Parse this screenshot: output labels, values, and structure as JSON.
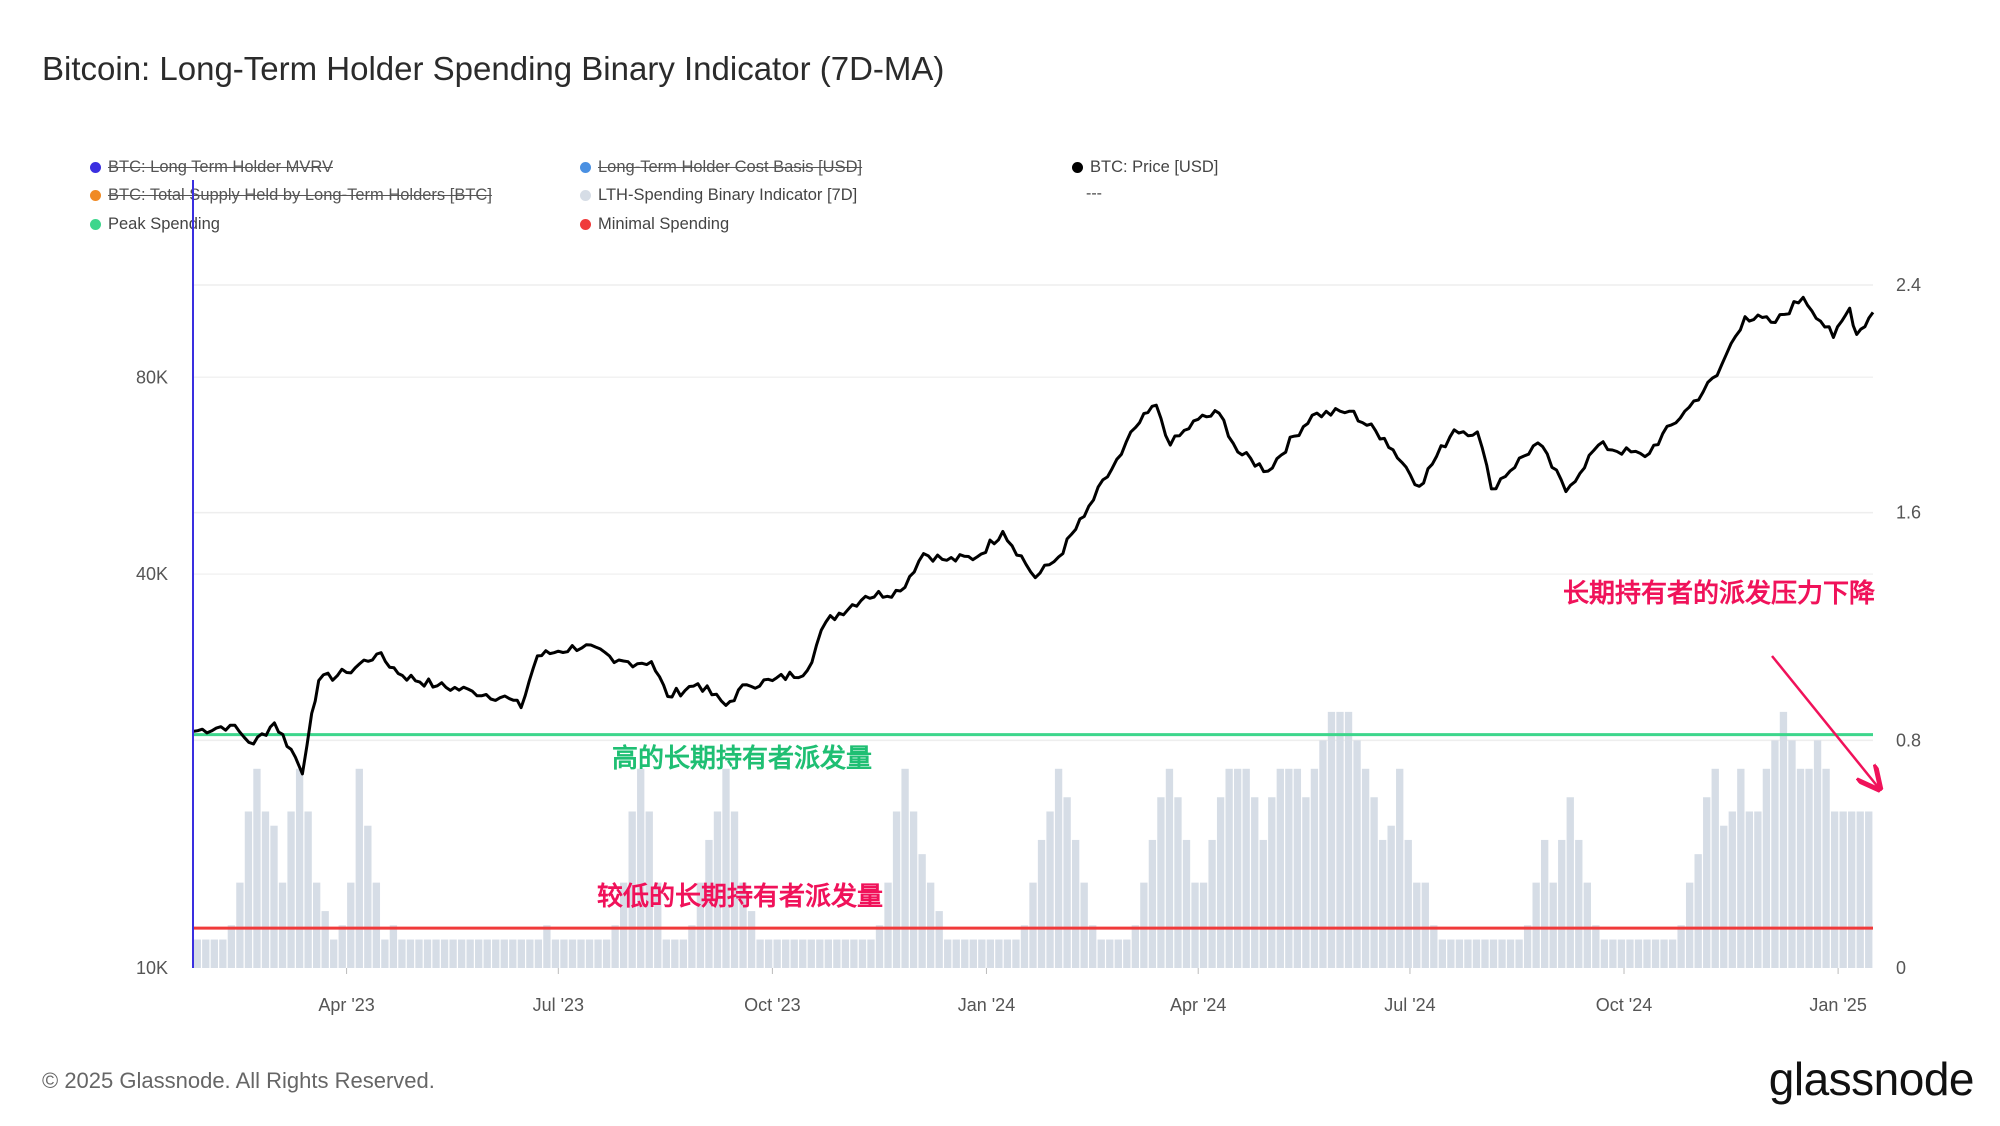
{
  "title": "Bitcoin: Long-Term Holder Spending Binary Indicator (7D-MA)",
  "legend": [
    {
      "label": "BTC: Long Term Holder MVRV",
      "color": "#3a2fe0",
      "struck": true
    },
    {
      "label": "Long-Term Holder Cost Basis [USD]",
      "color": "#4a90e2",
      "struck": true
    },
    {
      "label": "BTC: Price [USD]",
      "color": "#000000",
      "struck": false
    },
    {
      "label": "BTC: Total Supply Held by Long-Term Holders [BTC]",
      "color": "#f08a24",
      "struck": true
    },
    {
      "label": "LTH-Spending Binary Indicator [7D]",
      "color": "#d6dde6",
      "struck": false
    },
    {
      "label": "Peak Spending",
      "color": "#3dd68c",
      "struck": false
    },
    {
      "label": "Minimal Spending",
      "color": "#f03a3a",
      "struck": false
    }
  ],
  "legend_extra": "---",
  "footer": {
    "copyright": "© 2025 Glassnode. All Rights Reserved.",
    "brand": "glassnode"
  },
  "chart_data": {
    "type": "line+bar",
    "title": "Bitcoin: Long-Term Holder Spending Binary Indicator (7D-MA)",
    "x_ticks": [
      "Apr '23",
      "Jul '23",
      "Oct '23",
      "Jan '24",
      "Apr '24",
      "Jul '24",
      "Oct '24",
      "Jan '25"
    ],
    "x_range": [
      "2023-01-25",
      "2025-01-16"
    ],
    "left_axis": {
      "scale": "log",
      "ticks": [
        {
          "label": "10K",
          "value": 10000
        },
        {
          "label": "40K",
          "value": 40000
        },
        {
          "label": "80K",
          "value": 80000
        }
      ],
      "range": [
        10000,
        105000
      ]
    },
    "right_axis": {
      "ticks": [
        {
          "label": "0",
          "value": 0
        },
        {
          "label": "0.8",
          "value": 0.8
        },
        {
          "label": "1.6",
          "value": 1.6
        },
        {
          "label": "2.4",
          "value": 2.4
        }
      ],
      "range": [
        0,
        2.4
      ]
    },
    "peak_spending_level": 0.82,
    "minimal_spending_level": 0.14,
    "price_series": {
      "name": "BTC: Price [USD]",
      "color": "#000000",
      "points": [
        [
          "2023-01-25",
          23000
        ],
        [
          "2023-02-10",
          23500
        ],
        [
          "2023-02-20",
          22000
        ],
        [
          "2023-03-01",
          23700
        ],
        [
          "2023-03-10",
          21000
        ],
        [
          "2023-03-13",
          19800
        ],
        [
          "2023-03-17",
          24500
        ],
        [
          "2023-03-20",
          27500
        ],
        [
          "2023-04-01",
          28300
        ],
        [
          "2023-04-14",
          30200
        ],
        [
          "2023-04-25",
          28000
        ],
        [
          "2023-05-10",
          27000
        ],
        [
          "2023-05-25",
          26500
        ],
        [
          "2023-06-10",
          25800
        ],
        [
          "2023-06-15",
          25000
        ],
        [
          "2023-06-22",
          30000
        ],
        [
          "2023-07-01",
          30500
        ],
        [
          "2023-07-13",
          31200
        ],
        [
          "2023-07-25",
          29300
        ],
        [
          "2023-08-10",
          29400
        ],
        [
          "2023-08-17",
          26000
        ],
        [
          "2023-08-30",
          27200
        ],
        [
          "2023-09-11",
          25200
        ],
        [
          "2023-09-20",
          27100
        ],
        [
          "2023-10-01",
          27500
        ],
        [
          "2023-10-16",
          28500
        ],
        [
          "2023-10-24",
          33800
        ],
        [
          "2023-11-10",
          37000
        ],
        [
          "2023-11-25",
          37700
        ],
        [
          "2023-12-05",
          43000
        ],
        [
          "2023-12-15",
          42000
        ],
        [
          "2023-12-28",
          42500
        ],
        [
          "2024-01-08",
          46500
        ],
        [
          "2024-01-22",
          39500
        ],
        [
          "2024-02-01",
          42500
        ],
        [
          "2024-02-12",
          49000
        ],
        [
          "2024-02-28",
          61000
        ],
        [
          "2024-03-05",
          67000
        ],
        [
          "2024-03-14",
          72500
        ],
        [
          "2024-03-20",
          63000
        ],
        [
          "2024-04-01",
          69000
        ],
        [
          "2024-04-10",
          70500
        ],
        [
          "2024-04-18",
          61500
        ],
        [
          "2024-05-01",
          57500
        ],
        [
          "2024-05-20",
          70000
        ],
        [
          "2024-06-05",
          71000
        ],
        [
          "2024-06-20",
          64500
        ],
        [
          "2024-07-05",
          54500
        ],
        [
          "2024-07-20",
          66500
        ],
        [
          "2024-07-30",
          66000
        ],
        [
          "2024-08-05",
          54000
        ],
        [
          "2024-08-25",
          63500
        ],
        [
          "2024-09-06",
          53500
        ],
        [
          "2024-09-20",
          63000
        ],
        [
          "2024-10-10",
          60500
        ],
        [
          "2024-10-29",
          72000
        ],
        [
          "2024-11-10",
          80500
        ],
        [
          "2024-11-22",
          99000
        ],
        [
          "2024-12-05",
          97000
        ],
        [
          "2024-12-17",
          106000
        ],
        [
          "2024-12-30",
          92000
        ],
        [
          "2025-01-06",
          102000
        ],
        [
          "2025-01-09",
          93000
        ],
        [
          "2025-01-16",
          100500
        ]
      ]
    },
    "indicator_series": {
      "name": "LTH-Spending Binary Indicator [7D]",
      "color": "#d6dde6",
      "note": "weekly bars, 0-1 indicator (7D-MA), values in right-axis units",
      "values": [
        0.1,
        0.1,
        0.1,
        0.1,
        0.15,
        0.3,
        0.55,
        0.7,
        0.55,
        0.5,
        0.3,
        0.55,
        0.7,
        0.55,
        0.3,
        0.2,
        0.1,
        0.15,
        0.3,
        0.7,
        0.5,
        0.3,
        0.1,
        0.15,
        0.1,
        0.1,
        0.1,
        0.1,
        0.1,
        0.1,
        0.1,
        0.1,
        0.1,
        0.1,
        0.1,
        0.1,
        0.1,
        0.1,
        0.1,
        0.1,
        0.1,
        0.15,
        0.1,
        0.1,
        0.1,
        0.1,
        0.1,
        0.1,
        0.1,
        0.15,
        0.3,
        0.55,
        0.7,
        0.55,
        0.3,
        0.1,
        0.1,
        0.1,
        0.15,
        0.3,
        0.45,
        0.55,
        0.7,
        0.55,
        0.3,
        0.2,
        0.1,
        0.1,
        0.1,
        0.1,
        0.1,
        0.1,
        0.1,
        0.1,
        0.1,
        0.1,
        0.1,
        0.1,
        0.1,
        0.1,
        0.15,
        0.3,
        0.55,
        0.7,
        0.55,
        0.4,
        0.3,
        0.2,
        0.1,
        0.1,
        0.1,
        0.1,
        0.1,
        0.1,
        0.1,
        0.1,
        0.1,
        0.15,
        0.3,
        0.45,
        0.55,
        0.7,
        0.6,
        0.45,
        0.3,
        0.15,
        0.1,
        0.1,
        0.1,
        0.1,
        0.15,
        0.3,
        0.45,
        0.6,
        0.7,
        0.6,
        0.45,
        0.3,
        0.3,
        0.45,
        0.6,
        0.7,
        0.7,
        0.7,
        0.6,
        0.45,
        0.6,
        0.7,
        0.7,
        0.7,
        0.6,
        0.7,
        0.8,
        0.9,
        0.9,
        0.9,
        0.8,
        0.7,
        0.6,
        0.45,
        0.5,
        0.7,
        0.45,
        0.3,
        0.3,
        0.15,
        0.1,
        0.1,
        0.1,
        0.1,
        0.1,
        0.1,
        0.1,
        0.1,
        0.1,
        0.1,
        0.15,
        0.3,
        0.45,
        0.3,
        0.45,
        0.6,
        0.45,
        0.3,
        0.15,
        0.1,
        0.1,
        0.1,
        0.1,
        0.1,
        0.1,
        0.1,
        0.1,
        0.1,
        0.15,
        0.3,
        0.4,
        0.6,
        0.7,
        0.5,
        0.55,
        0.7,
        0.55,
        0.55,
        0.7,
        0.8,
        0.9,
        0.8,
        0.7,
        0.7,
        0.8,
        0.7,
        0.55,
        0.55,
        0.55,
        0.55,
        0.55
      ]
    },
    "annotations": [
      {
        "text": "长期持有者的派发压力下降",
        "color": "#f0125a"
      },
      {
        "text": "高的长期持有者派发量",
        "color": "#1fbf73"
      },
      {
        "text": "较低的长期持有者派发量",
        "color": "#f0125a"
      }
    ]
  }
}
